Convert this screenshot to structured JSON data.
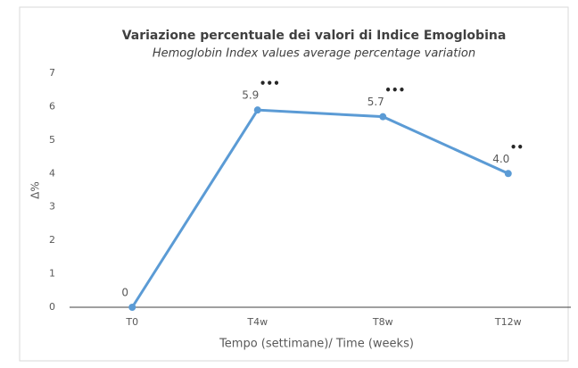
{
  "chart_data": {
    "type": "line",
    "title": "Variazione percentuale dei valori di Indice Emoglobina",
    "subtitle": "Hemoglobin Index values average percentage variation",
    "x_label": "Tempo (settimane)/ Time (weeks)",
    "y_label": "Δ%",
    "categories": [
      "T0",
      "T4w",
      "T8w",
      "T12w"
    ],
    "values": [
      0,
      5.9,
      5.7,
      4.0
    ],
    "value_labels": [
      "0",
      "5.9",
      "5.7",
      "4.0"
    ],
    "significance": [
      null,
      "•••",
      "•••",
      "••"
    ],
    "color": "#5b9bd5",
    "ylim": [
      0,
      7
    ],
    "yticks": [
      0,
      1,
      2,
      3,
      4,
      5,
      6,
      7
    ],
    "grid": false
  }
}
